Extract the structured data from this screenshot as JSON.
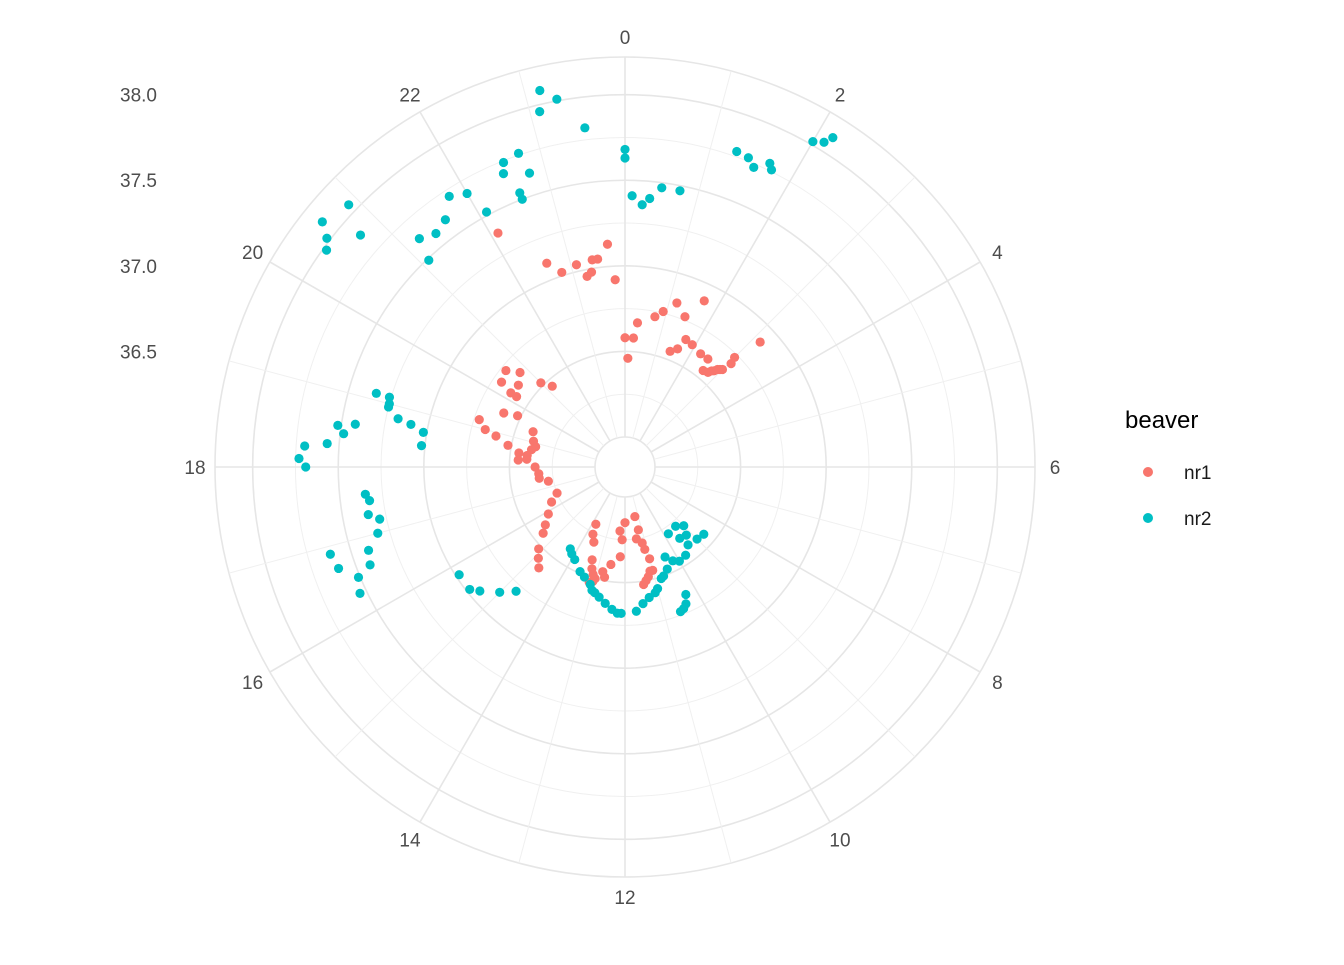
{
  "chart_data": {
    "type": "scatter",
    "coord": "polar",
    "title": "",
    "xlabel": "",
    "ylabel": "",
    "theta": {
      "range": [
        0,
        24
      ],
      "start": 0,
      "direction": "clockwise",
      "ticks": [
        0,
        2,
        4,
        6,
        8,
        10,
        12,
        14,
        16,
        18,
        20,
        22
      ]
    },
    "radius": {
      "range": [
        36.0,
        38.22
      ],
      "ticks": [
        36.5,
        37.0,
        37.5,
        38.0
      ],
      "major_rings": [
        36.0,
        36.5,
        37.0,
        37.5,
        38.0
      ],
      "minor_rings": [
        36.25,
        36.75,
        37.25,
        37.75
      ],
      "outer_ring": true
    },
    "grid": true,
    "legend": {
      "title": "beaver",
      "position": "right"
    },
    "series": [
      {
        "name": "nr1",
        "color": "#F8766D",
        "points": [
          [
            0.0,
            36.58
          ],
          [
            0.1,
            36.46
          ],
          [
            0.25,
            36.58
          ],
          [
            0.33,
            36.67
          ],
          [
            0.75,
            36.72
          ],
          [
            0.92,
            36.76
          ],
          [
            1.17,
            36.83
          ],
          [
            1.45,
            36.77
          ],
          [
            1.7,
            36.9
          ],
          [
            1.42,
            36.55
          ],
          [
            1.6,
            36.58
          ],
          [
            1.7,
            36.65
          ],
          [
            1.92,
            36.64
          ],
          [
            2.25,
            36.62
          ],
          [
            2.5,
            36.62
          ],
          [
            2.6,
            36.55
          ],
          [
            2.75,
            36.56
          ],
          [
            2.8,
            36.58
          ],
          [
            2.85,
            36.59
          ],
          [
            2.9,
            36.61
          ],
          [
            2.95,
            36.62
          ],
          [
            3.0,
            36.63
          ],
          [
            3.05,
            36.69
          ],
          [
            3.0,
            36.73
          ],
          [
            3.15,
            36.9
          ],
          [
            12.15,
            36.25
          ],
          [
            12.2,
            36.35
          ],
          [
            12.55,
            36.4
          ],
          [
            12.8,
            36.45
          ],
          [
            12.7,
            36.48
          ],
          [
            12.3,
            36.2
          ],
          [
            12.0,
            36.15
          ],
          [
            11.25,
            36.12
          ],
          [
            11.2,
            36.2
          ],
          [
            11.4,
            36.25
          ],
          [
            11.15,
            36.28
          ],
          [
            11.1,
            36.32
          ],
          [
            11.0,
            36.38
          ],
          [
            11.0,
            36.45
          ],
          [
            11.1,
            36.45
          ],
          [
            11.2,
            36.48
          ],
          [
            11.3,
            36.5
          ],
          [
            11.4,
            36.52
          ],
          [
            13.8,
            36.2
          ],
          [
            13.7,
            36.26
          ],
          [
            13.5,
            36.3
          ],
          [
            13.3,
            36.4
          ],
          [
            13.2,
            36.45
          ],
          [
            13.1,
            36.48
          ],
          [
            13.0,
            36.5
          ],
          [
            13.05,
            36.52
          ],
          [
            13.15,
            36.53
          ],
          [
            14.7,
            36.6
          ],
          [
            14.9,
            36.56
          ],
          [
            15.1,
            36.52
          ],
          [
            15.4,
            36.44
          ],
          [
            15.6,
            36.4
          ],
          [
            15.9,
            36.35
          ],
          [
            16.3,
            36.3
          ],
          [
            16.6,
            36.25
          ],
          [
            17.3,
            36.28
          ],
          [
            17.5,
            36.33
          ],
          [
            17.7,
            36.33
          ],
          [
            18.0,
            36.35
          ],
          [
            18.3,
            36.4
          ],
          [
            18.5,
            36.45
          ],
          [
            18.7,
            36.52
          ],
          [
            18.9,
            36.6
          ],
          [
            19.0,
            36.67
          ],
          [
            19.2,
            36.72
          ],
          [
            19.6,
            36.6
          ],
          [
            19.7,
            36.52
          ],
          [
            19.4,
            36.4
          ],
          [
            19.05,
            36.38
          ],
          [
            18.85,
            36.36
          ],
          [
            18.7,
            36.38
          ],
          [
            18.45,
            36.4
          ],
          [
            18.25,
            36.45
          ],
          [
            20.2,
            36.62
          ],
          [
            20.3,
            36.7
          ],
          [
            20.2,
            36.58
          ],
          [
            20.5,
            36.61
          ],
          [
            20.6,
            36.72
          ],
          [
            20.8,
            36.65
          ],
          [
            21.0,
            36.52
          ],
          [
            21.2,
            36.46
          ],
          [
            22.6,
            37.1
          ],
          [
            22.8,
            37.02
          ],
          [
            23.1,
            37.04
          ],
          [
            23.25,
            36.96
          ],
          [
            23.35,
            36.98
          ],
          [
            23.4,
            37.05
          ],
          [
            23.5,
            37.05
          ],
          [
            23.7,
            37.13
          ],
          [
            23.8,
            36.92
          ],
          [
            22.1,
            37.38
          ]
        ]
      },
      {
        "name": "nr2",
        "color": "#00BFC4",
        "points": [
          [
            0.0,
            37.68
          ],
          [
            0.0,
            37.63
          ],
          [
            0.1,
            37.41
          ],
          [
            0.25,
            37.36
          ],
          [
            0.35,
            37.4
          ],
          [
            0.5,
            37.47
          ],
          [
            0.75,
            37.47
          ],
          [
            1.3,
            37.78
          ],
          [
            1.45,
            37.77
          ],
          [
            1.55,
            37.73
          ],
          [
            1.7,
            37.79
          ],
          [
            1.75,
            37.76
          ],
          [
            2.0,
            38.02
          ],
          [
            2.1,
            38.05
          ],
          [
            2.15,
            38.1
          ],
          [
            23.55,
            37.82
          ],
          [
            23.3,
            38.01
          ],
          [
            23.1,
            37.96
          ],
          [
            23.15,
            38.08
          ],
          [
            22.8,
            37.63
          ],
          [
            22.6,
            37.5
          ],
          [
            22.6,
            37.54
          ],
          [
            22.5,
            37.68
          ],
          [
            22.55,
            37.74
          ],
          [
            22.75,
            37.76
          ],
          [
            22.1,
            37.52
          ],
          [
            22.0,
            37.67
          ],
          [
            21.8,
            37.71
          ],
          [
            21.6,
            37.61
          ],
          [
            21.4,
            37.58
          ],
          [
            21.2,
            37.62
          ],
          [
            21.1,
            37.49
          ],
          [
            20.9,
            38.05
          ],
          [
            20.75,
            37.88
          ],
          [
            20.4,
            37.98
          ],
          [
            20.6,
            38.1
          ],
          [
            20.5,
            38.02
          ],
          [
            19.1,
            37.26
          ],
          [
            19.0,
            37.25
          ],
          [
            19.1,
            37.34
          ],
          [
            18.95,
            37.25
          ],
          [
            18.8,
            37.18
          ],
          [
            18.75,
            37.1
          ],
          [
            18.65,
            37.02
          ],
          [
            18.4,
            37.02
          ],
          [
            18.6,
            37.42
          ],
          [
            18.55,
            37.52
          ],
          [
            18.45,
            37.48
          ],
          [
            18.3,
            37.57
          ],
          [
            18.25,
            37.7
          ],
          [
            18.1,
            37.73
          ],
          [
            18.0,
            37.69
          ],
          [
            17.6,
            37.35
          ],
          [
            17.5,
            37.33
          ],
          [
            17.3,
            37.35
          ],
          [
            17.2,
            37.29
          ],
          [
            17.0,
            37.32
          ],
          [
            16.8,
            37.4
          ],
          [
            16.6,
            37.42
          ],
          [
            16.7,
            37.6
          ],
          [
            16.9,
            37.62
          ],
          [
            16.5,
            37.51
          ],
          [
            16.3,
            37.54
          ],
          [
            15.8,
            36.98
          ],
          [
            15.45,
            36.98
          ],
          [
            15.3,
            36.94
          ],
          [
            15.0,
            36.86
          ],
          [
            14.75,
            36.79
          ],
          [
            14.25,
            36.4
          ],
          [
            14.1,
            36.42
          ],
          [
            13.9,
            36.44
          ],
          [
            13.55,
            36.49
          ],
          [
            13.35,
            36.51
          ],
          [
            13.1,
            36.54
          ],
          [
            13.0,
            36.57
          ],
          [
            12.9,
            36.58
          ],
          [
            12.75,
            36.6
          ],
          [
            12.55,
            36.63
          ],
          [
            12.35,
            36.66
          ],
          [
            12.2,
            36.68
          ],
          [
            12.1,
            36.68
          ],
          [
            11.7,
            36.67
          ],
          [
            11.5,
            36.63
          ],
          [
            11.3,
            36.6
          ],
          [
            11.1,
            36.58
          ],
          [
            11.0,
            36.56
          ],
          [
            10.8,
            36.51
          ],
          [
            10.7,
            36.5
          ],
          [
            10.5,
            36.47
          ],
          [
            10.4,
            36.4
          ],
          [
            10.2,
            36.44
          ],
          [
            10.0,
            36.46
          ],
          [
            9.7,
            36.45
          ],
          [
            9.4,
            36.41
          ],
          [
            9.2,
            36.36
          ],
          [
            9.5,
            36.35
          ],
          [
            9.0,
            36.31
          ],
          [
            9.3,
            36.28
          ],
          [
            9.8,
            36.29
          ],
          [
            9.0,
            36.42
          ],
          [
            8.7,
            36.43
          ],
          [
            10.3,
            36.65
          ],
          [
            10.4,
            36.7
          ],
          [
            10.5,
            36.72
          ],
          [
            10.6,
            36.73
          ]
        ]
      }
    ]
  }
}
